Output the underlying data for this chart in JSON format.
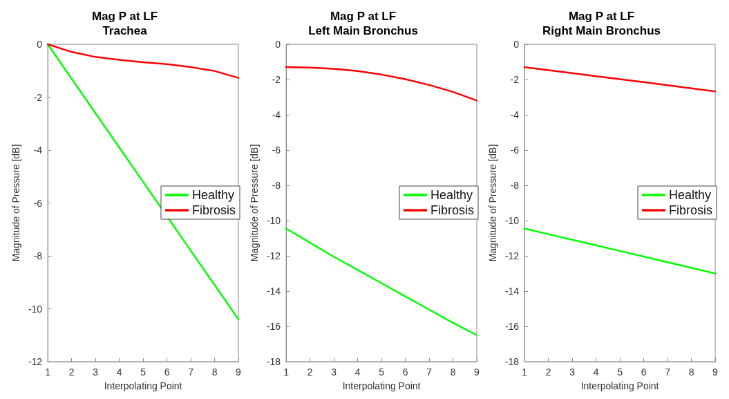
{
  "chart_data": [
    {
      "type": "line",
      "title": "Mag P at LF",
      "subtitle": "Trachea",
      "xlabel": "Interpolating Point",
      "ylabel": "Magnitude of Pressure [dB]",
      "x": [
        1,
        2,
        3,
        4,
        5,
        6,
        7,
        8,
        9
      ],
      "xlim": [
        1,
        9
      ],
      "xticks": [
        1,
        2,
        3,
        4,
        5,
        6,
        7,
        8,
        9
      ],
      "ylim": [
        -12,
        0
      ],
      "yticks": [
        -12,
        -10,
        -8,
        -6,
        -4,
        -2,
        0
      ],
      "grid": false,
      "legend": "right",
      "marker": "none",
      "line_style": "solid",
      "series": [
        {
          "name": "Healthy",
          "color": "#00ff00",
          "values": [
            0,
            -1.3,
            -2.6,
            -3.9,
            -5.2,
            null,
            -7.8,
            -9.1,
            -10.4
          ]
        },
        {
          "name": "Fibrosis",
          "color": "#ff0000",
          "values": [
            0,
            -0.29,
            -0.48,
            -0.59,
            -0.68,
            -0.75,
            -0.86,
            -1.01,
            -1.27
          ]
        }
      ]
    },
    {
      "type": "line",
      "title": "Mag P at LF",
      "subtitle": "Left Main Bronchus",
      "xlabel": "Interpolating Point",
      "ylabel": "Magnitude of Pressure [dB]",
      "x": [
        1,
        2,
        3,
        4,
        5,
        6,
        7,
        8,
        9
      ],
      "xlim": [
        1,
        9
      ],
      "xticks": [
        1,
        2,
        3,
        4,
        5,
        6,
        7,
        8,
        9
      ],
      "ylim": [
        -18,
        0
      ],
      "yticks": [
        -18,
        -16,
        -14,
        -12,
        -10,
        -8,
        -6,
        -4,
        -2,
        0
      ],
      "grid": false,
      "legend": "right",
      "marker": "none",
      "line_style": "solid",
      "series": [
        {
          "name": "Healthy",
          "color": "#00ff00",
          "values": [
            -10.45,
            -11.25,
            -12.05,
            -12.8,
            -13.55,
            -14.3,
            -15.05,
            -15.8,
            -16.5
          ]
        },
        {
          "name": "Fibrosis",
          "color": "#ff0000",
          "values": [
            -1.29,
            -1.32,
            -1.39,
            -1.52,
            -1.72,
            -1.98,
            -2.31,
            -2.7,
            -3.19
          ]
        }
      ]
    },
    {
      "type": "line",
      "title": "Mag P at LF",
      "subtitle": "Right Main Bronchus",
      "xlabel": "Interpolating Point",
      "ylabel": "Magnitude of Pressure [dB]",
      "x": [
        1,
        2,
        3,
        4,
        5,
        6,
        7,
        8,
        9
      ],
      "xlim": [
        1,
        9
      ],
      "xticks": [
        1,
        2,
        3,
        4,
        5,
        6,
        7,
        8,
        9
      ],
      "ylim": [
        -18,
        0
      ],
      "yticks": [
        -18,
        -16,
        -14,
        -12,
        -10,
        -8,
        -6,
        -4,
        -2,
        0
      ],
      "grid": false,
      "legend": "right",
      "marker": "none",
      "line_style": "solid",
      "series": [
        {
          "name": "Healthy",
          "color": "#00ff00",
          "values": [
            -10.45,
            -10.77,
            -11.09,
            -11.4,
            -11.72,
            -12.04,
            -12.36,
            -12.68,
            -13.0
          ]
        },
        {
          "name": "Fibrosis",
          "color": "#ff0000",
          "values": [
            -1.3,
            -1.47,
            -1.64,
            -1.81,
            -1.98,
            -2.15,
            -2.32,
            -2.5,
            -2.68
          ]
        }
      ]
    }
  ]
}
